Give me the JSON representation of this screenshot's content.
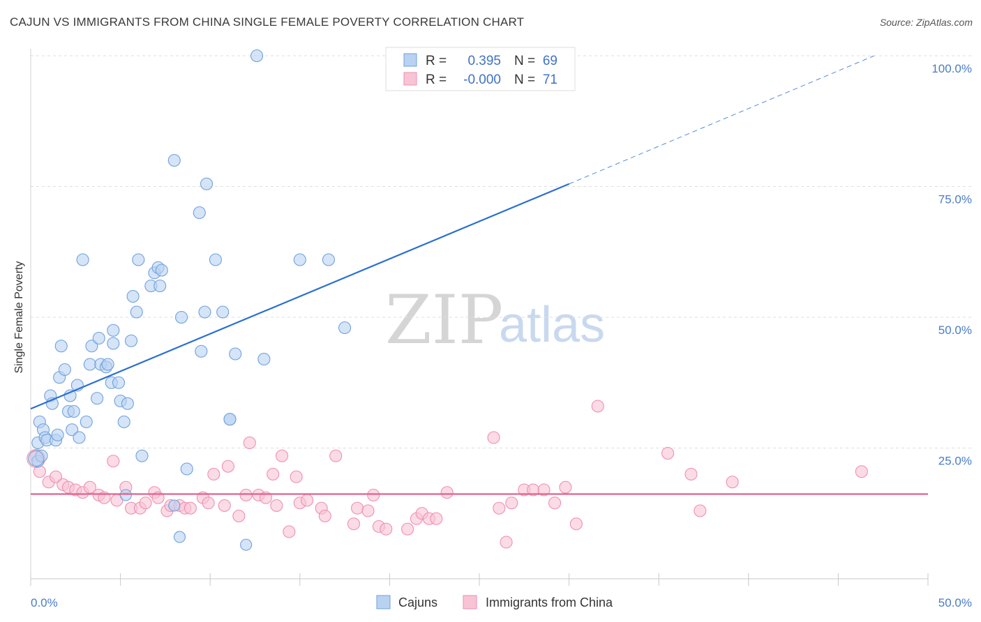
{
  "chart_data": {
    "type": "scatter",
    "title": "CAJUN VS IMMIGRANTS FROM CHINA SINGLE FEMALE POVERTY CORRELATION CHART",
    "source": "Source: ZipAtlas.com",
    "ylabel": "Single Female Poverty",
    "xlabel": "",
    "xlim": [
      0,
      50
    ],
    "ylim": [
      0,
      100
    ],
    "x_ticks": [
      {
        "value": 0,
        "label": "0.0%"
      },
      {
        "value": 50,
        "label": "50.0%"
      }
    ],
    "y_ticks": [
      {
        "value": 25,
        "label": "25.0%"
      },
      {
        "value": 50,
        "label": "50.0%"
      },
      {
        "value": 75,
        "label": "75.0%"
      },
      {
        "value": 100,
        "label": "100.0%"
      }
    ],
    "watermark": {
      "part1": "ZIP",
      "part2": "atlas"
    },
    "stats_box": [
      {
        "series": "Cajuns",
        "r_label": "R =",
        "r_value": "0.395",
        "n_label": "N =",
        "n_value": "69"
      },
      {
        "series": "Immigrants from China",
        "r_label": "R =",
        "r_value": "-0.000",
        "n_label": "N =",
        "n_value": "71"
      }
    ],
    "series": [
      {
        "name": "Cajuns",
        "color": "#6fa0dc",
        "fill": "#b9d2f2",
        "line_color": "#2a6fd0",
        "trend": {
          "x0": 0,
          "y0": 32.5,
          "x1": 30,
          "y1": 75.5,
          "dashed_to_x": 47,
          "dashed_to_y": 100
        },
        "points": [
          [
            0.4,
            22.5
          ],
          [
            0.4,
            26
          ],
          [
            0.5,
            30
          ],
          [
            0.6,
            23.5
          ],
          [
            0.7,
            28.5
          ],
          [
            0.8,
            27
          ],
          [
            0.9,
            26.5
          ],
          [
            1.1,
            35
          ],
          [
            1.2,
            33.5
          ],
          [
            1.4,
            26.5
          ],
          [
            1.5,
            27.5
          ],
          [
            1.6,
            38.5
          ],
          [
            1.7,
            44.5
          ],
          [
            1.9,
            40
          ],
          [
            2.1,
            32
          ],
          [
            2.2,
            35
          ],
          [
            2.3,
            28.5
          ],
          [
            2.4,
            32
          ],
          [
            2.6,
            37
          ],
          [
            2.7,
            27
          ],
          [
            2.9,
            61
          ],
          [
            3.1,
            30
          ],
          [
            3.3,
            41
          ],
          [
            3.4,
            44.5
          ],
          [
            3.7,
            34.5
          ],
          [
            3.8,
            46
          ],
          [
            3.9,
            41
          ],
          [
            4.2,
            40.5
          ],
          [
            4.3,
            41
          ],
          [
            4.5,
            37.5
          ],
          [
            4.6,
            47.5
          ],
          [
            4.6,
            45
          ],
          [
            4.9,
            37.5
          ],
          [
            5.0,
            34
          ],
          [
            5.2,
            30
          ],
          [
            5.4,
            33.5
          ],
          [
            5.6,
            45.5
          ],
          [
            5.7,
            54
          ],
          [
            5.9,
            51
          ],
          [
            6.0,
            61
          ],
          [
            6.2,
            23.5
          ],
          [
            6.7,
            56
          ],
          [
            6.9,
            58.5
          ],
          [
            7.1,
            59.5
          ],
          [
            7.2,
            56
          ],
          [
            7.3,
            59
          ],
          [
            8.0,
            80
          ],
          [
            8.4,
            50
          ],
          [
            8.7,
            21
          ],
          [
            9.4,
            70
          ],
          [
            9.5,
            43.5
          ],
          [
            9.7,
            51
          ],
          [
            9.8,
            75.5
          ],
          [
            10.3,
            61
          ],
          [
            10.7,
            51
          ],
          [
            11.1,
            30.5
          ],
          [
            11.1,
            30.5
          ],
          [
            11.4,
            43
          ],
          [
            12.6,
            100
          ],
          [
            13.0,
            42
          ],
          [
            15.0,
            61
          ],
          [
            16.6,
            61
          ],
          [
            17.5,
            48
          ]
        ],
        "small_points": [
          [
            5.3,
            16
          ],
          [
            8.0,
            14
          ],
          [
            8.3,
            8
          ],
          [
            12.0,
            6.5
          ]
        ]
      },
      {
        "name": "Immigrants from China",
        "color": "#ee8fb0",
        "fill": "#f8c3d5",
        "line_color": "#e0628e",
        "trend": {
          "x0": 0,
          "y0": 16.2,
          "x1": 50,
          "y1": 16.2
        },
        "points": [
          [
            0.3,
            23.5
          ],
          [
            0.5,
            20.5
          ],
          [
            1.0,
            18.5
          ],
          [
            1.4,
            19.5
          ],
          [
            1.8,
            18
          ],
          [
            2.1,
            17.5
          ],
          [
            2.5,
            17
          ],
          [
            2.9,
            16.5
          ],
          [
            3.3,
            17.5
          ],
          [
            3.8,
            16
          ],
          [
            4.1,
            15.5
          ],
          [
            4.6,
            22.5
          ],
          [
            4.8,
            15
          ],
          [
            5.3,
            17.5
          ],
          [
            5.6,
            13.5
          ],
          [
            6.1,
            13.5
          ],
          [
            6.4,
            14.5
          ],
          [
            6.9,
            16.5
          ],
          [
            7.1,
            15.5
          ],
          [
            7.6,
            13
          ],
          [
            7.8,
            14
          ],
          [
            8.3,
            14
          ],
          [
            8.6,
            13.5
          ],
          [
            8.9,
            13.5
          ],
          [
            9.6,
            15.5
          ],
          [
            9.9,
            14.5
          ],
          [
            10.2,
            20
          ],
          [
            10.8,
            14
          ],
          [
            11.0,
            21.5
          ],
          [
            11.6,
            12
          ],
          [
            12.0,
            16
          ],
          [
            12.2,
            26
          ],
          [
            12.7,
            16
          ],
          [
            13.1,
            15.5
          ],
          [
            13.5,
            20
          ],
          [
            13.7,
            14
          ],
          [
            14.0,
            23.5
          ],
          [
            14.4,
            9
          ],
          [
            14.8,
            19.5
          ],
          [
            15.0,
            14.5
          ],
          [
            15.4,
            15
          ],
          [
            16.2,
            13.5
          ],
          [
            16.4,
            12
          ],
          [
            17.0,
            23.5
          ],
          [
            18.0,
            10.5
          ],
          [
            18.2,
            13.5
          ],
          [
            18.8,
            13
          ],
          [
            19.1,
            16
          ],
          [
            19.4,
            10
          ],
          [
            19.8,
            9.5
          ],
          [
            21.0,
            9.5
          ],
          [
            21.5,
            11.5
          ],
          [
            21.8,
            12.5
          ],
          [
            22.2,
            11.5
          ],
          [
            22.6,
            11.5
          ],
          [
            23.2,
            16.5
          ],
          [
            25.8,
            27
          ],
          [
            26.1,
            13.5
          ],
          [
            26.5,
            7
          ],
          [
            26.8,
            14.5
          ],
          [
            27.5,
            17
          ],
          [
            28.0,
            17
          ],
          [
            28.6,
            17
          ],
          [
            29.2,
            14.5
          ],
          [
            29.8,
            17.5
          ],
          [
            30.4,
            10.5
          ],
          [
            31.6,
            33
          ],
          [
            35.5,
            24
          ],
          [
            36.8,
            20
          ],
          [
            37.3,
            13
          ],
          [
            39.1,
            18.5
          ],
          [
            46.3,
            20.5
          ]
        ]
      }
    ]
  },
  "legend": [
    {
      "label": "Cajuns"
    },
    {
      "label": "Immigrants from China"
    }
  ]
}
